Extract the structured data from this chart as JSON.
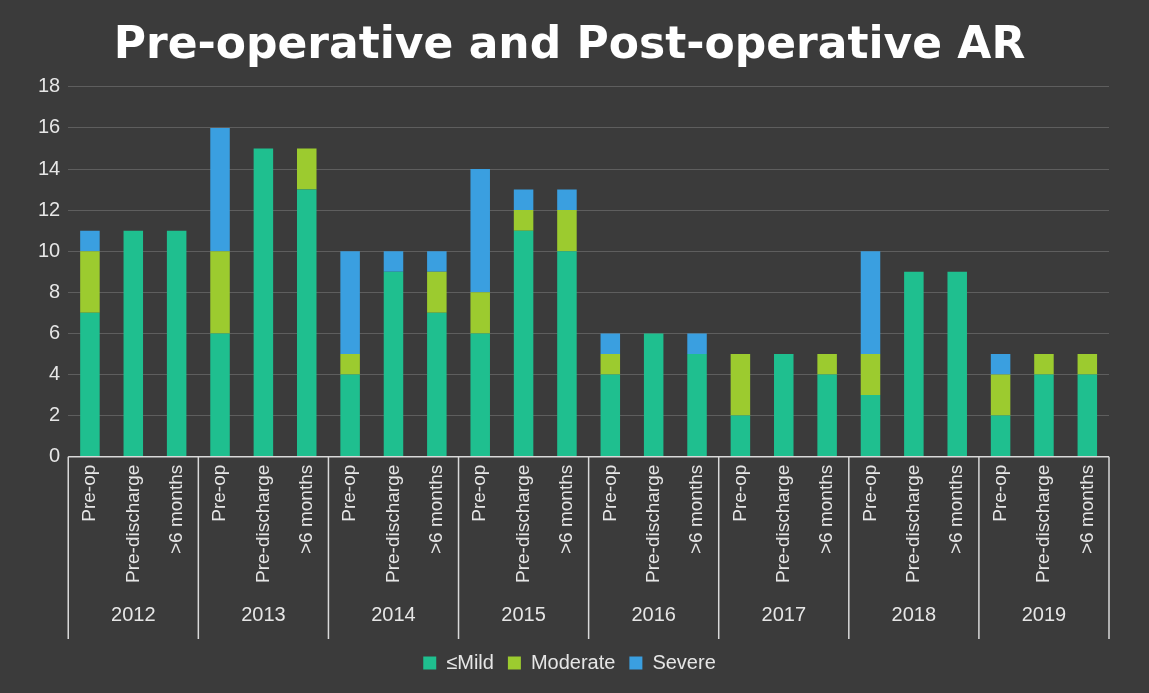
{
  "chart_data": {
    "type": "bar",
    "title": "Pre-operative and Post-operative AR",
    "stacked": true,
    "categories": [
      "Pre-op",
      "Pre-discharge",
      ">6 months",
      "Pre-op",
      "Pre-discharge",
      ">6 months",
      "Pre-op",
      "Pre-discharge",
      ">6 months",
      "Pre-op",
      "Pre-discharge",
      ">6 months",
      "Pre-op",
      "Pre-discharge",
      ">6 months",
      "Pre-op",
      "Pre-discharge",
      ">6 months",
      "Pre-op",
      "Pre-discharge",
      ">6 months",
      "Pre-op",
      "Pre-discharge",
      ">6 months"
    ],
    "series": [
      {
        "name": "≤Mild",
        "color": "#1fbf8f",
        "values": [
          7,
          11,
          11,
          6,
          15,
          13,
          4,
          9,
          7,
          6,
          11,
          10,
          4,
          6,
          5,
          2,
          5,
          4,
          3,
          9,
          9,
          2,
          4,
          4
        ]
      },
      {
        "name": "Moderate",
        "color": "#9ccb2f",
        "values": [
          3,
          0,
          0,
          4,
          0,
          2,
          1,
          0,
          2,
          2,
          1,
          2,
          1,
          0,
          0,
          3,
          0,
          1,
          2,
          0,
          0,
          2,
          1,
          1
        ]
      },
      {
        "name": "Severe",
        "color": "#3a9fe0",
        "values": [
          1,
          0,
          0,
          6,
          0,
          0,
          5,
          1,
          1,
          6,
          1,
          1,
          1,
          0,
          1,
          0,
          0,
          0,
          5,
          0,
          0,
          1,
          0,
          0
        ]
      }
    ],
    "annotations": [
      "2012",
      "2013",
      "2014",
      "2015",
      "2016",
      "2017",
      "2018",
      "2019"
    ],
    "ylim": [
      0,
      18
    ],
    "yticks": [
      0,
      2,
      4,
      6,
      8,
      10,
      12,
      14,
      16,
      18
    ],
    "grid": "y",
    "legend": "bottom"
  }
}
